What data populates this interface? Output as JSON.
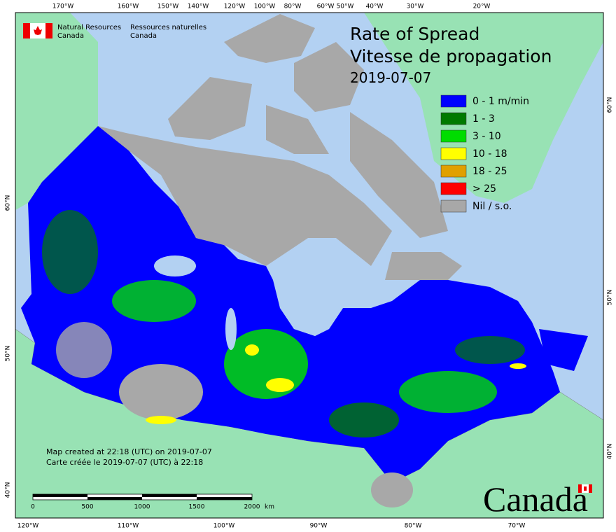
{
  "header": {
    "org_en_1": "Natural Resources",
    "org_en_2": "Canada",
    "org_fr_1": "Ressources naturelles",
    "org_fr_2": "Canada"
  },
  "title": {
    "line1": "Rate of Spread",
    "line2": "Vitesse de propagation",
    "date": "2019-07-07"
  },
  "legend": [
    {
      "label": "0 - 1 m/min",
      "color": "#0000ff"
    },
    {
      "label": "1 - 3",
      "color": "#007a00"
    },
    {
      "label": "3 - 10",
      "color": "#00dd00"
    },
    {
      "label": "10 - 18",
      "color": "#ffff00"
    },
    {
      "label": "18 - 25",
      "color": "#e0a000"
    },
    {
      "label": "> 25",
      "color": "#ff0000"
    },
    {
      "label": "Nil / s.o.",
      "color": "#a8a8a8"
    }
  ],
  "credits": [
    "Map created at 22:18 (UTC) on 2019-07-07",
    "Carte créée le 2019-07-07 (UTC) à 22:18"
  ],
  "scale_bar": {
    "labels": [
      "0",
      "500",
      "1000",
      "1500",
      "2000"
    ],
    "unit": "km"
  },
  "graticule": {
    "top": [
      "170°W",
      "160°W",
      "150°W",
      "140°W",
      "120°W",
      "100°W",
      "80°W",
      "60°W",
      "50°W",
      "40°W",
      "30°W",
      "20°W"
    ],
    "bottom": [
      "120°W",
      "110°W",
      "100°W",
      "90°W",
      "80°W",
      "70°W"
    ],
    "left": [
      "60°N",
      "50°N",
      "40°N"
    ],
    "right": [
      "60°N",
      "50°N",
      "40°N"
    ]
  },
  "wordmark": "Canada"
}
